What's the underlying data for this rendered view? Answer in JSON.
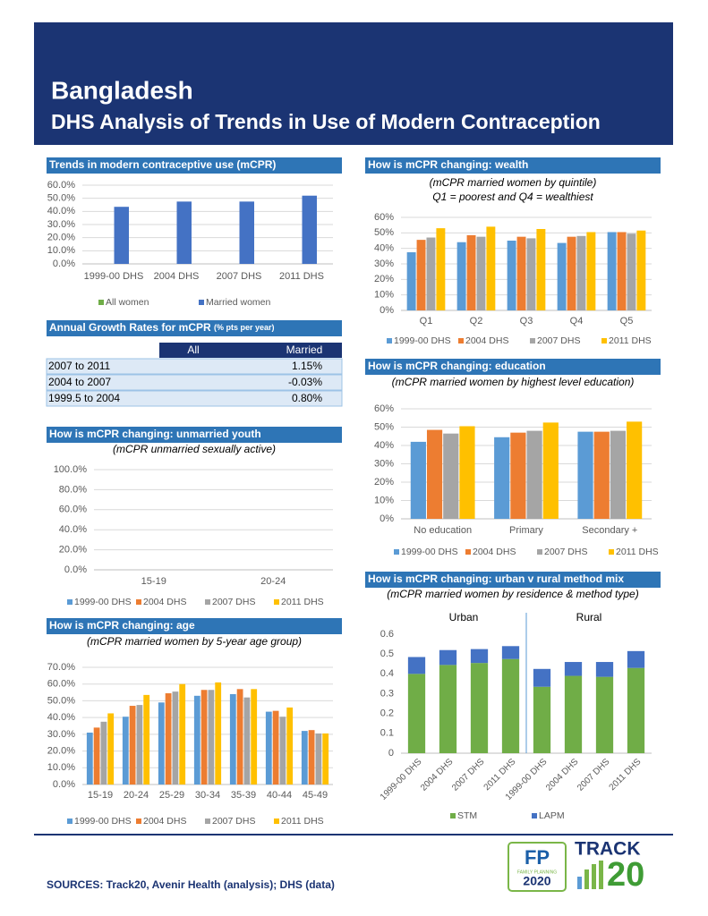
{
  "header": {
    "title": "Bangladesh",
    "subtitle": "DHS Analysis of Trends in Use of Modern Contraception"
  },
  "chart_data": [
    {
      "type": "bar",
      "title": "Trends in modern contraceptive use (mCPR)",
      "categories": [
        "1999-00 DHS",
        "2004 DHS",
        "2007 DHS",
        "2011 DHS"
      ],
      "series": [
        {
          "name": "All women",
          "color": "#70ad47",
          "values": [
            null,
            null,
            null,
            null
          ]
        },
        {
          "name": "Married women",
          "color": "#4472c4",
          "values": [
            43.5,
            47.5,
            47.5,
            52
          ]
        }
      ],
      "ylim": [
        0,
        60
      ],
      "yticks": [
        {
          "value": 0,
          "label": "0.0%"
        },
        {
          "value": 10,
          "label": "10.0%"
        },
        {
          "value": 20,
          "label": "20.0%"
        },
        {
          "value": 30,
          "label": "30.0%"
        },
        {
          "value": 40,
          "label": "40.0%"
        },
        {
          "value": 50,
          "label": "50.0%"
        },
        {
          "value": 60,
          "label": "60.0%"
        }
      ],
      "grid": true,
      "legend": "bottom"
    },
    {
      "type": "bar",
      "title": "How is mCPR changing: wealth",
      "subtitle": [
        "(mCPR married women by quintile)",
        "Q1 = poorest and Q4 = wealthiest"
      ],
      "categories": [
        "Q1",
        "Q2",
        "Q3",
        "Q4",
        "Q5"
      ],
      "series": [
        {
          "name": "1999-00 DHS",
          "color": "#5b9bd5",
          "values": [
            37.5,
            44,
            45,
            43.5,
            50.5
          ]
        },
        {
          "name": "2004 DHS",
          "color": "#ed7d31",
          "values": [
            45.5,
            48.5,
            47.5,
            47.5,
            50.5
          ]
        },
        {
          "name": "2007 DHS",
          "color": "#a5a5a5",
          "values": [
            47,
            47.5,
            46.5,
            48,
            49.5
          ]
        },
        {
          "name": "2011 DHS",
          "color": "#ffc000",
          "values": [
            53,
            54,
            52.5,
            50.5,
            51.5
          ]
        }
      ],
      "ylim": [
        0,
        60
      ],
      "yticks": [
        {
          "value": 0,
          "label": "0%"
        },
        {
          "value": 10,
          "label": "10%"
        },
        {
          "value": 20,
          "label": "20%"
        },
        {
          "value": 30,
          "label": "30%"
        },
        {
          "value": 40,
          "label": "40%"
        },
        {
          "value": 50,
          "label": "50%"
        },
        {
          "value": 60,
          "label": "60%"
        }
      ],
      "grid": true,
      "legend": "bottom"
    },
    {
      "type": "bar",
      "title": "How is mCPR changing: unmarried youth",
      "subtitle": [
        "(mCPR unmarried sexually active)"
      ],
      "categories": [
        "15-19",
        "20-24"
      ],
      "series": [
        {
          "name": "1999-00 DHS",
          "color": "#5b9bd5",
          "values": [
            null,
            null
          ]
        },
        {
          "name": "2004 DHS",
          "color": "#ed7d31",
          "values": [
            null,
            null
          ]
        },
        {
          "name": "2007 DHS",
          "color": "#a5a5a5",
          "values": [
            null,
            null
          ]
        },
        {
          "name": "2011 DHS",
          "color": "#ffc000",
          "values": [
            null,
            null
          ]
        }
      ],
      "ylim": [
        0,
        100
      ],
      "yticks": [
        {
          "value": 0,
          "label": "0.0%"
        },
        {
          "value": 20,
          "label": "20.0%"
        },
        {
          "value": 40,
          "label": "40.0%"
        },
        {
          "value": 60,
          "label": "60.0%"
        },
        {
          "value": 80,
          "label": "80.0%"
        },
        {
          "value": 100,
          "label": "100.0%"
        }
      ],
      "grid": true,
      "legend": "bottom"
    },
    {
      "type": "bar",
      "title": "How is mCPR changing: education",
      "subtitle": [
        "(mCPR married women by highest level education)"
      ],
      "categories": [
        "No education",
        "Primary",
        "Secondary +"
      ],
      "series": [
        {
          "name": "1999-00 DHS",
          "color": "#5b9bd5",
          "values": [
            42,
            44.5,
            47.5
          ]
        },
        {
          "name": "2004 DHS",
          "color": "#ed7d31",
          "values": [
            48.5,
            47,
            47.5
          ]
        },
        {
          "name": "2007 DHS",
          "color": "#a5a5a5",
          "values": [
            46.5,
            48,
            48
          ]
        },
        {
          "name": "2011 DHS",
          "color": "#ffc000",
          "values": [
            50.5,
            52.5,
            53
          ]
        }
      ],
      "ylim": [
        0,
        60
      ],
      "yticks": [
        {
          "value": 0,
          "label": "0%"
        },
        {
          "value": 10,
          "label": "10%"
        },
        {
          "value": 20,
          "label": "20%"
        },
        {
          "value": 30,
          "label": "30%"
        },
        {
          "value": 40,
          "label": "40%"
        },
        {
          "value": 50,
          "label": "50%"
        },
        {
          "value": 60,
          "label": "60%"
        }
      ],
      "grid": true,
      "legend": "bottom"
    },
    {
      "type": "bar",
      "title": "How is mCPR changing: age",
      "subtitle": [
        "(mCPR married women by 5-year age group)"
      ],
      "categories": [
        "15-19",
        "20-24",
        "25-29",
        "30-34",
        "35-39",
        "40-44",
        "45-49"
      ],
      "series": [
        {
          "name": "1999-00 DHS",
          "color": "#5b9bd5",
          "values": [
            31,
            40.5,
            49,
            53,
            54,
            43.5,
            32
          ]
        },
        {
          "name": "2004 DHS",
          "color": "#ed7d31",
          "values": [
            34,
            47,
            54.5,
            56.5,
            57,
            44,
            32.5
          ]
        },
        {
          "name": "2007 DHS",
          "color": "#a5a5a5",
          "values": [
            37.5,
            47.5,
            55.5,
            56.5,
            52,
            40.5,
            30.5
          ]
        },
        {
          "name": "2011 DHS",
          "color": "#ffc000",
          "values": [
            42.5,
            53.5,
            60,
            61,
            57,
            46,
            30.5
          ]
        }
      ],
      "ylim": [
        0,
        70
      ],
      "yticks": [
        {
          "value": 0,
          "label": "0.0%"
        },
        {
          "value": 10,
          "label": "10.0%"
        },
        {
          "value": 20,
          "label": "20.0%"
        },
        {
          "value": 30,
          "label": "30.0%"
        },
        {
          "value": 40,
          "label": "40.0%"
        },
        {
          "value": 50,
          "label": "50.0%"
        },
        {
          "value": 60,
          "label": "60.0%"
        },
        {
          "value": 70,
          "label": "70.0%"
        }
      ],
      "grid": true,
      "legend": "bottom"
    },
    {
      "type": "stacked_bar",
      "title": "How is mCPR changing: urban v rural method mix",
      "subtitle": [
        "(mCPR married women by residence & method type)"
      ],
      "groups": [
        "Urban",
        "Rural"
      ],
      "categories": [
        "1999-00 DHS",
        "2004 DHS",
        "2007 DHS",
        "2011 DHS",
        "1999-00 DHS",
        "2004 DHS",
        "2007 DHS",
        "2011 DHS"
      ],
      "series": [
        {
          "name": "STM",
          "color": "#70ad47",
          "values": [
            0.4,
            0.445,
            0.455,
            0.475,
            0.335,
            0.39,
            0.385,
            0.43
          ]
        },
        {
          "name": "LAPM",
          "color": "#4472c4",
          "values": [
            0.085,
            0.075,
            0.07,
            0.065,
            0.09,
            0.07,
            0.075,
            0.085
          ]
        }
      ],
      "ylim": [
        0,
        0.6
      ],
      "yticks": [
        0,
        0.1,
        0.2,
        0.3,
        0.4,
        0.5,
        0.6
      ],
      "grid": false,
      "legend": "bottom"
    }
  ],
  "table": {
    "title": "Annual Growth Rates for mCPR",
    "title_note": "(% pts per year)",
    "columns": [
      "All",
      "Married"
    ],
    "rows": [
      {
        "label": "2007 to 2011",
        "married": "1.15%"
      },
      {
        "label": "2004 to 2007",
        "married": "-0.03%"
      },
      {
        "label": "1999.5 to 2004",
        "married": "0.80%"
      }
    ]
  },
  "sources": "SOURCES: Track20, Avenir Health (analysis); DHS (data)",
  "logos": {
    "fp": "FP",
    "fp_sub": "FAMILY PLANNING",
    "fp_year": "2020",
    "track": "TRACK",
    "track_num": "20"
  }
}
